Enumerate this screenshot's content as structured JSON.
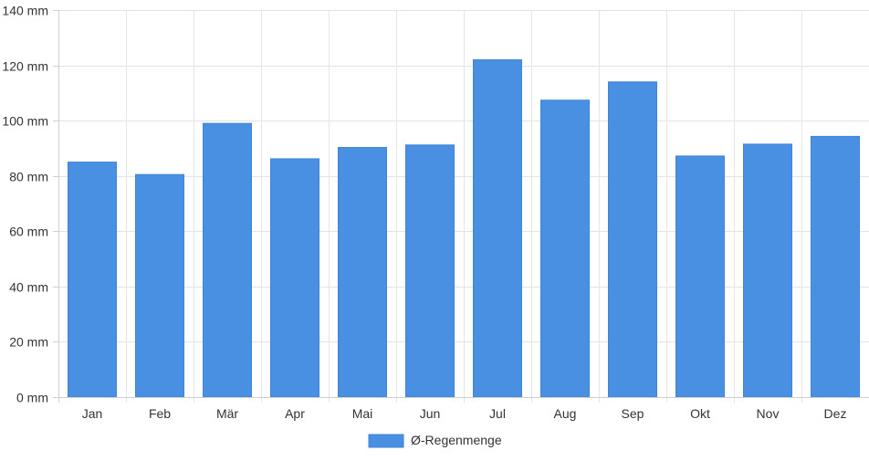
{
  "chart_data": {
    "type": "bar",
    "title": "",
    "xlabel": "",
    "ylabel": "",
    "categories": [
      "Jan",
      "Feb",
      "Mär",
      "Apr",
      "Mai",
      "Jun",
      "Jul",
      "Aug",
      "Sep",
      "Okt",
      "Nov",
      "Dez"
    ],
    "series": [
      {
        "name": "Ø-Regenmenge",
        "color": "#4a90e2",
        "values": [
          85,
          80.5,
          99,
          86.2,
          90.3,
          91.2,
          122,
          107.4,
          114,
          87.2,
          91.5,
          94.3
        ]
      }
    ],
    "y_ticks": [
      "0 mm",
      "20 mm",
      "40 mm",
      "60 mm",
      "80 mm",
      "100 mm",
      "120 mm",
      "140 mm"
    ],
    "ylim": [
      0,
      140
    ],
    "unit": "mm",
    "grid": true,
    "legend_position": "bottom"
  }
}
